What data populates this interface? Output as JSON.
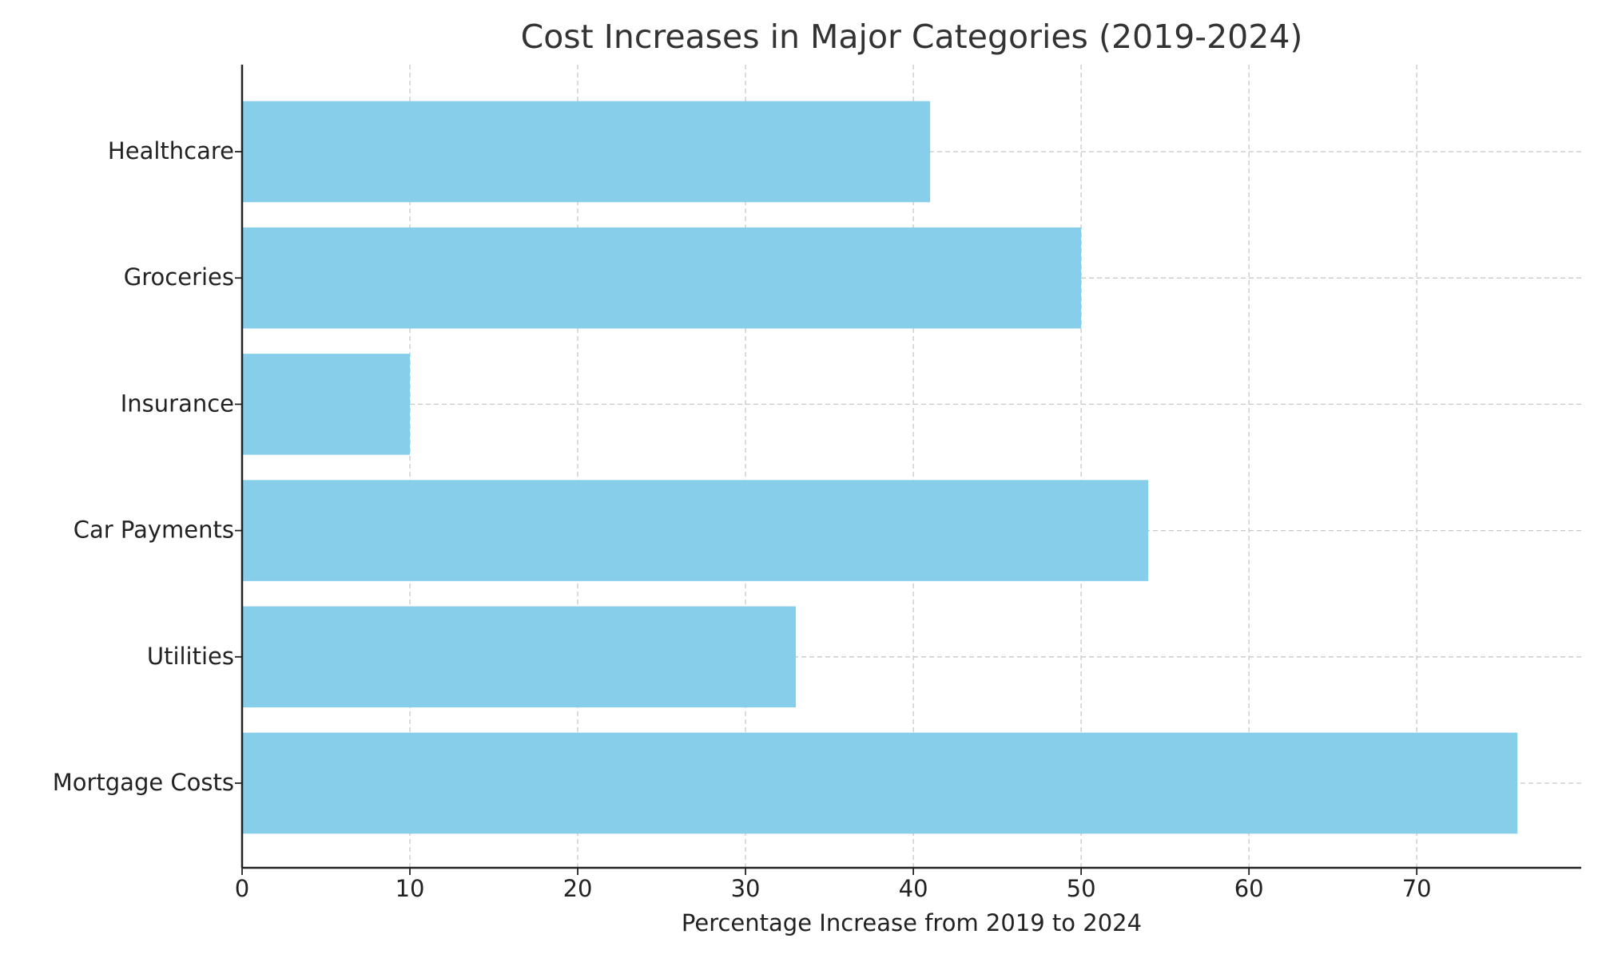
{
  "chart_data": {
    "type": "barh",
    "title": "Cost Increases in Major Categories (2019-2024)",
    "x_label": "Percentage Increase from 2019 to 2024",
    "categories": [
      "Mortgage Costs",
      "Utilities",
      "Car Payments",
      "Insurance",
      "Groceries",
      "Healthcare"
    ],
    "values": [
      76,
      33,
      54,
      10,
      50,
      41
    ],
    "color": "#87ceeb",
    "xlim": [
      0,
      79.8
    ],
    "xticks": [
      0,
      10,
      20,
      30,
      40,
      50,
      60,
      70
    ],
    "grid": true
  }
}
